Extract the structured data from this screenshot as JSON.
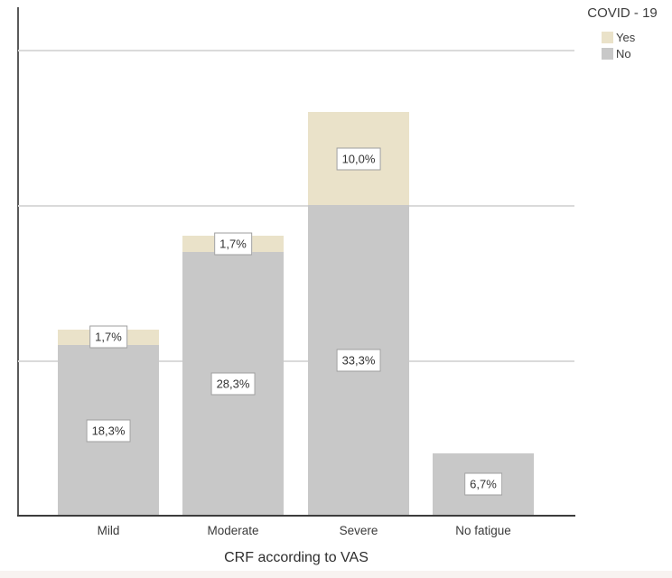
{
  "chart_data": {
    "type": "bar",
    "subtype": "stacked",
    "title": "",
    "xlabel": "CRF according to VAS",
    "ylabel": "",
    "categories": [
      "Mild",
      "Moderate",
      "Severe",
      "No fatigue"
    ],
    "series": [
      {
        "name": "No",
        "color": "#c8c8c8",
        "values": [
          18.3,
          28.3,
          33.3,
          6.7
        ],
        "labels": [
          "18,3%",
          "28,3%",
          "33,3%",
          "6,7%"
        ]
      },
      {
        "name": "Yes",
        "color": "#eae2c9",
        "values": [
          1.7,
          1.7,
          10.0,
          null
        ],
        "labels": [
          "1,7%",
          "1,7%",
          "10,0%",
          null
        ]
      }
    ],
    "stack_order": [
      "No",
      "Yes"
    ],
    "legend": {
      "title": "COVID - 19",
      "position": "top-right",
      "entries": [
        {
          "label": "Yes",
          "color": "#eae2c9"
        },
        {
          "label": "No",
          "color": "#c8c8c8"
        }
      ]
    },
    "y_axis": {
      "min": 0,
      "max": 54.6,
      "gridline_values": [
        16.7,
        33.3,
        50
      ],
      "tick_labels_visible": false
    },
    "grid": true,
    "value_label_style": "boxed-white"
  },
  "colors": {
    "series_yes": "#eae2c9",
    "series_no": "#c8c8c8",
    "gridline": "#dadada",
    "y_axis_line": "#5a5a5a",
    "x_axis_line": "#3c3c3c",
    "text": "#3a3a3a",
    "value_label_border": "#9e9e9e",
    "bottom_strip": "#f8f2f0"
  }
}
